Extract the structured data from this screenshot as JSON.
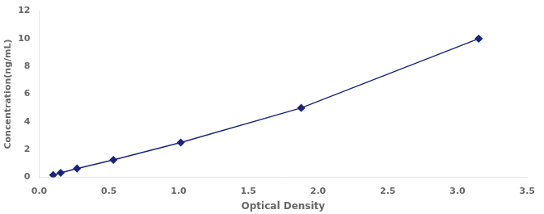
{
  "chart_data": {
    "type": "line",
    "x": [
      0.1,
      0.154,
      0.271,
      0.532,
      1.015,
      1.879,
      3.152
    ],
    "values": [
      0.156,
      0.312,
      0.625,
      1.25,
      2.5,
      5.0,
      10.0
    ],
    "color": "#1a237e",
    "marker": "diamond",
    "xlabel": "Optical Density",
    "ylabel": "Concentration(ng/mL)",
    "xlim": [
      0,
      3.5
    ],
    "ylim": [
      0,
      12
    ],
    "xticks": [
      {
        "value": 0,
        "label": "0.0"
      },
      0.5,
      {
        "value": 1.0,
        "label": "1.0"
      },
      1.5,
      {
        "value": 2.0,
        "label": "2.0"
      },
      2.5,
      {
        "value": 3.0,
        "label": "3.0"
      },
      3.5
    ],
    "yticks": [
      0,
      2,
      4,
      6,
      8,
      10,
      12
    ],
    "grid": false
  }
}
